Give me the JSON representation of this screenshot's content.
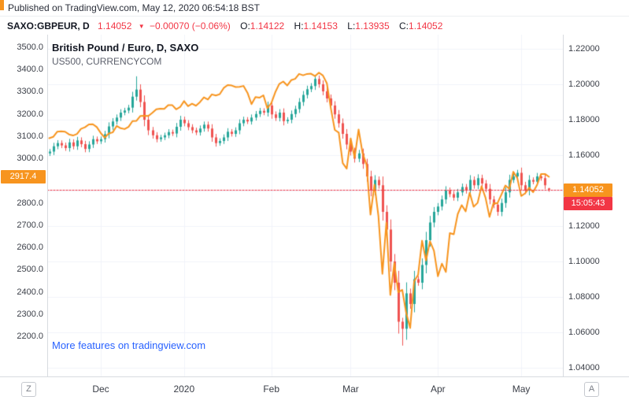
{
  "header": {
    "published": "Published on TradingView.com, May 12, 2020 06:54:18 BST"
  },
  "legend": {
    "symbol": "SAXO:GBPEUR, D",
    "last": "1.14052",
    "direction": "▼",
    "change": "−0.00070 (−0.06%)",
    "o_label": "O:",
    "o": "1.14122",
    "h_label": "H:",
    "h": "1.14153",
    "l_label": "L:",
    "l": "1.13935",
    "c_label": "C:",
    "c": "1.14052"
  },
  "chart": {
    "watermark": "More features on tradingview.com",
    "left_tag": "2917.4",
    "price_tag": "1.14052",
    "countdown": "15:05:43",
    "z_button": "Z",
    "a_button": "A"
  },
  "colors": {
    "up": "#26a69a",
    "down": "#ef5350",
    "line": "#f7941e",
    "grid": "#f0f3fa",
    "dotted": "#f23645",
    "axis_text": "#3a3e47",
    "accent_blue": "#2962ff"
  },
  "chart_data": {
    "type": "candlestick+line",
    "title": "British Pound / Euro, D, SAXO",
    "subtitle": "US500, CURRENCYCOM",
    "x_tick_labels": [
      "Dec",
      "2020",
      "Feb",
      "Mar",
      "Apr",
      "May"
    ],
    "x_tick_indices": [
      13,
      34,
      56,
      76,
      98,
      119
    ],
    "right_offset_slots": 3,
    "left_axis": {
      "min": 2019.4,
      "max": 3556.7,
      "ticks": [
        3500,
        3400,
        3300,
        3200,
        3100,
        3000,
        2800,
        2700,
        2600,
        2500,
        2400,
        2300,
        2200
      ]
    },
    "right_axis": {
      "min": 1.0351,
      "max": 1.228,
      "ticks": [
        1.22,
        1.2,
        1.18,
        1.16,
        1.12,
        1.1,
        1.08,
        1.06,
        1.04
      ]
    },
    "grid": {
      "min": 1.04,
      "max": 1.22,
      "step": 0.02
    },
    "price_line": 1.14052,
    "last_us500": 2917.4,
    "series": [
      {
        "name": "SAXO:GBPEUR",
        "type": "candlestick",
        "axis": "right",
        "close": [
          1.162,
          1.165,
          1.1668,
          1.1655,
          1.164,
          1.1672,
          1.165,
          1.1683,
          1.1662,
          1.1635,
          1.166,
          1.169,
          1.1678,
          1.169,
          1.1718,
          1.1762,
          1.179,
          1.1812,
          1.184,
          1.1852,
          1.1868,
          1.193,
          1.197,
          1.19,
          1.18,
          1.174,
          1.1712,
          1.169,
          1.17,
          1.1712,
          1.173,
          1.1722,
          1.176,
          1.18,
          1.178,
          1.1758,
          1.174,
          1.1728,
          1.175,
          1.1772,
          1.175,
          1.17,
          1.1668,
          1.168,
          1.17,
          1.1732,
          1.172,
          1.174,
          1.178,
          1.18,
          1.179,
          1.1812,
          1.1832,
          1.185,
          1.184,
          1.188,
          1.183,
          1.181,
          1.184,
          1.1792,
          1.18,
          1.1832,
          1.186,
          1.19,
          1.194,
          1.1972,
          1.199,
          1.203,
          1.2,
          1.196,
          1.192,
          1.188,
          1.183,
          1.178,
          1.172,
          1.166,
          1.162,
          1.158,
          1.161,
          1.155,
          1.148,
          1.14,
          1.146,
          1.143,
          1.128,
          1.118,
          1.1,
          1.088,
          1.066,
          1.062,
          1.082,
          1.076,
          1.09,
          1.088,
          1.098,
          1.112,
          1.122,
          1.128,
          1.131,
          1.135,
          1.14,
          1.138,
          1.136,
          1.139,
          1.142,
          1.14,
          1.146,
          1.143,
          1.147,
          1.144,
          1.141,
          1.135,
          1.132,
          1.128,
          1.133,
          1.139,
          1.146,
          1.148,
          1.15,
          1.143,
          1.14,
          1.146,
          1.145,
          1.148,
          1.147,
          1.143,
          1.14052
        ],
        "wick_overrides": {
          "22": {
            "h": 1.2045
          },
          "89": {
            "l": 1.0525
          },
          "126": {
            "o": 1.14122,
            "h": 1.14153,
            "l": 1.13935
          }
        }
      },
      {
        "name": "US500",
        "type": "line",
        "axis": "left",
        "close": [
          3091,
          3097,
          3120,
          3122,
          3120,
          3108,
          3103,
          3110,
          3133,
          3140,
          3153,
          3154,
          3141,
          3114,
          3093,
          3112,
          3117,
          3146,
          3136,
          3132,
          3142,
          3168,
          3169,
          3191,
          3192,
          3191,
          3205,
          3221,
          3224,
          3223,
          3240,
          3240,
          3221,
          3231,
          3258,
          3235,
          3246,
          3237,
          3253,
          3275,
          3265,
          3288,
          3283,
          3289,
          3317,
          3330,
          3328,
          3321,
          3322,
          3326,
          3295,
          3244,
          3276,
          3273,
          3284,
          3226,
          3249,
          3298,
          3335,
          3346,
          3328,
          3352,
          3358,
          3380,
          3374,
          3380,
          3381,
          3370,
          3386,
          3373,
          3338,
          3226,
          3128,
          3116,
          2979,
          2954,
          3090,
          3003,
          3130,
          3024,
          2972,
          2747,
          2882,
          2741,
          2481,
          2711,
          2386,
          2529,
          2398,
          2409,
          2305,
          2237,
          2447,
          2476,
          2630,
          2541,
          2627,
          2585,
          2470,
          2527,
          2489,
          2664,
          2659,
          2750,
          2790,
          2762,
          2846,
          2783,
          2800,
          2875,
          2823,
          2737,
          2799,
          2798,
          2837,
          2878,
          2863,
          2940,
          2912,
          2831,
          2843,
          2868,
          2848,
          2881,
          2930,
          2930,
          2917.4
        ]
      }
    ]
  }
}
